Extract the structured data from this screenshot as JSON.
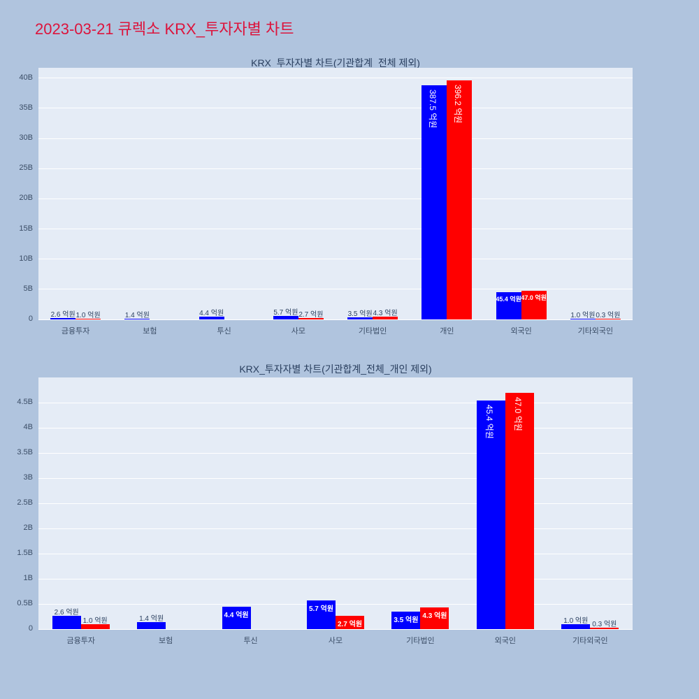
{
  "page": {
    "title": "2023-03-21 큐렉소 KRX_투자자별 차트",
    "title_color": "crimson",
    "background_color": "#b0c4de"
  },
  "chart_data": [
    {
      "type": "bar",
      "title": "KRX_투자자별 차트(기관합계_전체 제외)",
      "categories": [
        "금융투자",
        "보험",
        "투신",
        "사모",
        "기타법인",
        "개인",
        "외국인",
        "기타외국인"
      ],
      "unit": "억원",
      "value_scale_to_axis": 0.1,
      "y_axis_max": 41.7,
      "y_ticks": [
        {
          "v": 0,
          "label": "0"
        },
        {
          "v": 5,
          "label": "5B"
        },
        {
          "v": 10,
          "label": "10B"
        },
        {
          "v": 15,
          "label": "15B"
        },
        {
          "v": 20,
          "label": "20B"
        },
        {
          "v": 25,
          "label": "25B"
        },
        {
          "v": 30,
          "label": "30B"
        },
        {
          "v": 35,
          "label": "35B"
        },
        {
          "v": 40,
          "label": "40B"
        }
      ],
      "plot_bg": "#e5ecf6",
      "grid_color": "#ffffff",
      "series": [
        {
          "name": "blue",
          "color": "#0000ff",
          "values": [
            2.6,
            1.4,
            4.4,
            5.7,
            3.5,
            387.5,
            45.4,
            1.0
          ],
          "labels": [
            "2.6 억원",
            "1.4 억원",
            "4.4 억원",
            "5.7 억원",
            "3.5 억원",
            "387.5 억원",
            "45.4 억원",
            "1.0 억원"
          ]
        },
        {
          "name": "red",
          "color": "#ff0000",
          "values": [
            1.0,
            null,
            null,
            2.7,
            4.3,
            396.2,
            47.0,
            0.3
          ],
          "labels": [
            "1.0 억원",
            null,
            null,
            "2.7 억원",
            "4.3 억원",
            "396.2 억원",
            "47.0 억원",
            "0.3 억원"
          ]
        }
      ]
    },
    {
      "type": "bar",
      "title": "KRX_투자자별 차트(기관합계_전체_개인 제외)",
      "categories": [
        "금융투자",
        "보험",
        "투신",
        "사모",
        "기타법인",
        "외국인",
        "기타외국인"
      ],
      "unit": "억원",
      "value_scale_to_axis": 0.1,
      "y_axis_max": 5.0,
      "y_ticks": [
        {
          "v": 0,
          "label": "0"
        },
        {
          "v": 0.5,
          "label": "0.5B"
        },
        {
          "v": 1,
          "label": "1B"
        },
        {
          "v": 1.5,
          "label": "1.5B"
        },
        {
          "v": 2,
          "label": "2B"
        },
        {
          "v": 2.5,
          "label": "2.5B"
        },
        {
          "v": 3,
          "label": "3B"
        },
        {
          "v": 3.5,
          "label": "3.5B"
        },
        {
          "v": 4,
          "label": "4B"
        },
        {
          "v": 4.5,
          "label": "4.5B"
        }
      ],
      "plot_bg": "#e5ecf6",
      "grid_color": "#ffffff",
      "series": [
        {
          "name": "blue",
          "color": "#0000ff",
          "values": [
            2.6,
            1.4,
            4.4,
            5.7,
            3.5,
            45.4,
            1.0
          ],
          "labels": [
            "2.6 억원",
            "1.4 억원",
            "4.4 억원",
            "5.7 억원",
            "3.5 억원",
            "45.4 억원",
            "1.0 억원"
          ]
        },
        {
          "name": "red",
          "color": "#ff0000",
          "values": [
            1.0,
            null,
            null,
            2.7,
            4.3,
            47.0,
            0.3
          ],
          "labels": [
            "1.0 억원",
            null,
            null,
            "2.7 억원",
            "4.3 억원",
            "47.0 억원",
            "0.3 억원"
          ]
        }
      ]
    }
  ]
}
